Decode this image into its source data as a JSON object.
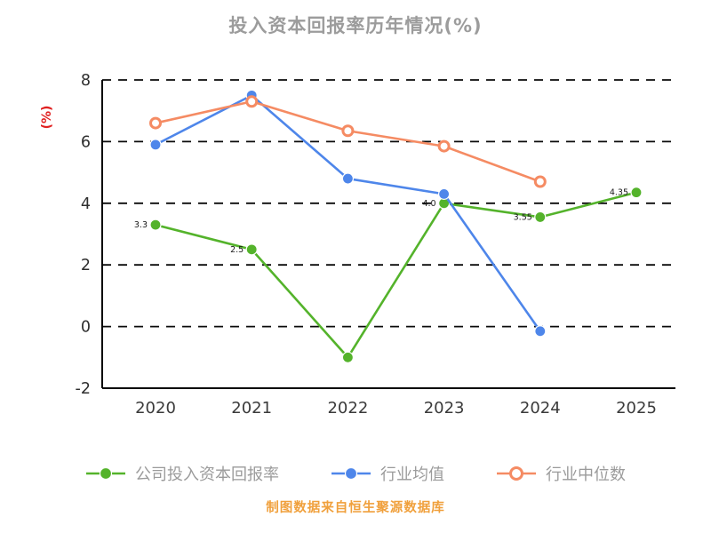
{
  "chart_data": {
    "type": "line",
    "title": "投入资本回报率历年情况(%)",
    "ylabel": "(%)",
    "caption": "制图数据来自恒生聚源数据库",
    "categories": [
      "2020",
      "2021",
      "2022",
      "2023",
      "2024",
      "2025"
    ],
    "ylim": [
      -2,
      8
    ],
    "yticks": [
      -2,
      0,
      2,
      4,
      6,
      8
    ],
    "grid": "horizontal-dashed",
    "legend_position": "bottom",
    "background": "#ffffff",
    "series": [
      {
        "name": "公司投入资本回报率",
        "color": "#54b32b",
        "marker": "filled",
        "values": [
          3.3,
          2.5,
          -1.0,
          4.0,
          3.55,
          4.35
        ],
        "labels": [
          "3.3",
          "2.5",
          "",
          "4.0",
          "3.55",
          "4.35"
        ]
      },
      {
        "name": "行业均值",
        "color": "#4e86ea",
        "marker": "filled",
        "values": [
          5.9,
          7.5,
          4.8,
          4.3,
          -0.15,
          null
        ]
      },
      {
        "name": "行业中位数",
        "color": "#f58b63",
        "marker": "hollow",
        "values": [
          6.6,
          7.3,
          6.35,
          5.85,
          4.7,
          null
        ]
      }
    ],
    "colors": {
      "title": "#9c9c9c",
      "caption": "#f0a03c",
      "ylabel": "#e02020",
      "axis": "#000000",
      "gridline": "#0a0a0a",
      "tick_text": "#2e2e2e",
      "legend_text": "#9b9b9b",
      "point_label": "#1a1a1a"
    }
  }
}
